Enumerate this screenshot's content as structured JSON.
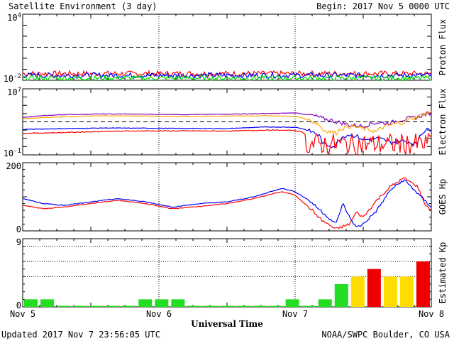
{
  "header": {
    "title": "Satellite Environment (3 day)",
    "begin": "Begin:  2017 Nov 5 0000 UTC"
  },
  "footer": {
    "updated": "Updated 2017 Nov  7 23:56:05 UTC",
    "credit": "NOAA/SWPC Boulder, CO USA"
  },
  "chart_data": [
    {
      "type": "line",
      "ylabel": "Proton Flux",
      "yscale": "log",
      "ylim": [
        0.01,
        10000
      ],
      "ytick_labels": [
        {
          "value": 10000,
          "base": "10",
          "exp": "4"
        },
        {
          "value": 0.01,
          "base": "10",
          "exp": "-2"
        }
      ],
      "threshold": 10,
      "series": [
        {
          "color": "#ff0000",
          "level": 0.04,
          "noise": 0.5,
          "kind": "noise"
        },
        {
          "color": "#0000ff",
          "level": 0.028,
          "noise": 0.5,
          "kind": "noise"
        },
        {
          "color": "#00dd00",
          "level": 0.016,
          "noise": 0.45,
          "kind": "noise"
        }
      ]
    },
    {
      "type": "line",
      "ylabel": "Electron Flux",
      "yscale": "log",
      "ylim": [
        0.1,
        10000000
      ],
      "ytick_labels": [
        {
          "value": 10000000,
          "base": "10",
          "exp": "7"
        },
        {
          "value": 0.1,
          "base": "10",
          "exp": "-1"
        }
      ],
      "threshold": 1000,
      "series": [
        {
          "color": "#8000c0",
          "points": [
            [
              0,
              3500
            ],
            [
              0.3,
              7500
            ],
            [
              0.6,
              9000
            ],
            [
              0.9,
              8500
            ],
            [
              1.2,
              7500
            ],
            [
              1.5,
              8500
            ],
            [
              1.8,
              10000
            ],
            [
              2.0,
              12000
            ],
            [
              2.1,
              7000
            ],
            [
              2.2,
              2500
            ],
            [
              2.3,
              1000
            ],
            [
              2.4,
              400
            ],
            [
              2.5,
              300
            ],
            [
              2.6,
              800
            ],
            [
              2.7,
              700
            ],
            [
              2.8,
              2000
            ],
            [
              2.9,
              3500
            ],
            [
              3.0,
              12000
            ]
          ]
        },
        {
          "color": "#ffa500",
          "points": [
            [
              0,
              2500
            ],
            [
              0.3,
              4000
            ],
            [
              0.6,
              5500
            ],
            [
              0.9,
              5000
            ],
            [
              1.2,
              4500
            ],
            [
              1.5,
              5000
            ],
            [
              1.8,
              5500
            ],
            [
              2.0,
              4500
            ],
            [
              2.1,
              1500
            ],
            [
              2.2,
              100
            ],
            [
              2.3,
              40
            ],
            [
              2.4,
              300
            ],
            [
              2.5,
              150
            ],
            [
              2.6,
              60
            ],
            [
              2.7,
              400
            ],
            [
              2.8,
              900
            ],
            [
              2.9,
              4000
            ],
            [
              3.0,
              15000
            ]
          ]
        },
        {
          "color": "#0000ff",
          "points": [
            [
              0,
              120
            ],
            [
              0.3,
              150
            ],
            [
              0.6,
              180
            ],
            [
              0.9,
              170
            ],
            [
              1.2,
              160
            ],
            [
              1.5,
              150
            ],
            [
              1.8,
              240
            ],
            [
              2.0,
              220
            ],
            [
              2.1,
              80
            ],
            [
              2.2,
              2
            ],
            [
              2.3,
              1
            ],
            [
              2.4,
              30
            ],
            [
              2.5,
              6
            ],
            [
              2.6,
              10
            ],
            [
              2.7,
              3
            ],
            [
              2.8,
              5
            ],
            [
              2.9,
              1.5
            ],
            [
              3.0,
              150
            ]
          ]
        },
        {
          "color": "#ff0000",
          "points": [
            [
              0,
              40
            ],
            [
              0.3,
              50
            ],
            [
              0.6,
              70
            ],
            [
              0.9,
              80
            ],
            [
              1.2,
              80
            ],
            [
              1.5,
              75
            ],
            [
              1.8,
              100
            ],
            [
              2.0,
              90
            ],
            [
              2.05,
              60
            ],
            [
              2.1,
              1
            ],
            [
              2.2,
              0.1
            ],
            [
              2.3,
              1
            ],
            [
              2.4,
              0.1
            ],
            [
              2.5,
              0.5
            ],
            [
              2.6,
              0.1
            ],
            [
              2.7,
              0.3
            ],
            [
              2.8,
              0.1
            ],
            [
              2.9,
              0.2
            ],
            [
              3.0,
              20
            ]
          ],
          "kind": "spiky"
        }
      ]
    },
    {
      "type": "line",
      "ylabel": "GOES Hp",
      "yscale": "linear",
      "ylim": [
        0,
        200
      ],
      "ytick_labels": [
        {
          "value": 200,
          "text": "200"
        },
        {
          "value": 0,
          "text": "0"
        }
      ],
      "series": [
        {
          "color": "#ff0000",
          "points": [
            [
              0,
              75
            ],
            [
              0.15,
              65
            ],
            [
              0.3,
              70
            ],
            [
              0.5,
              80
            ],
            [
              0.7,
              90
            ],
            [
              0.9,
              80
            ],
            [
              1.1,
              65
            ],
            [
              1.3,
              72
            ],
            [
              1.5,
              80
            ],
            [
              1.7,
              95
            ],
            [
              1.9,
              115
            ],
            [
              2.0,
              105
            ],
            [
              2.1,
              70
            ],
            [
              2.2,
              30
            ],
            [
              2.3,
              5
            ],
            [
              2.4,
              20
            ],
            [
              2.45,
              55
            ],
            [
              2.5,
              40
            ],
            [
              2.6,
              90
            ],
            [
              2.7,
              130
            ],
            [
              2.8,
              155
            ],
            [
              2.9,
              130
            ],
            [
              2.95,
              80
            ],
            [
              3.0,
              60
            ]
          ]
        },
        {
          "color": "#0000ff",
          "points": [
            [
              0,
              95
            ],
            [
              0.15,
              80
            ],
            [
              0.3,
              75
            ],
            [
              0.5,
              85
            ],
            [
              0.7,
              95
            ],
            [
              0.9,
              85
            ],
            [
              1.1,
              70
            ],
            [
              1.3,
              80
            ],
            [
              1.5,
              85
            ],
            [
              1.7,
              100
            ],
            [
              1.9,
              125
            ],
            [
              2.0,
              115
            ],
            [
              2.1,
              90
            ],
            [
              2.2,
              55
            ],
            [
              2.3,
              20
            ],
            [
              2.35,
              80
            ],
            [
              2.4,
              40
            ],
            [
              2.45,
              10
            ],
            [
              2.5,
              20
            ],
            [
              2.6,
              60
            ],
            [
              2.7,
              120
            ],
            [
              2.8,
              150
            ],
            [
              2.9,
              110
            ],
            [
              2.95,
              90
            ],
            [
              3.0,
              70
            ]
          ]
        }
      ]
    },
    {
      "type": "bar",
      "ylabel": "Estimated Kp",
      "yscale": "linear",
      "ylim": [
        0,
        9
      ],
      "ytick_labels": [
        {
          "value": 9,
          "text": "9"
        },
        {
          "value": 0,
          "text": "0"
        }
      ],
      "gridlines": [
        4,
        6,
        8
      ],
      "values": [
        1,
        1,
        0.15,
        0.15,
        0.15,
        0.15,
        0.15,
        1,
        1,
        1,
        0.15,
        0.15,
        0.15,
        0.15,
        0.15,
        0.15,
        1,
        0.15,
        1,
        3,
        4,
        5,
        4,
        4,
        6
      ],
      "colors": [
        "#22dd22",
        "#22dd22",
        "#22dd22",
        "#22dd22",
        "#22dd22",
        "#22dd22",
        "#22dd22",
        "#22dd22",
        "#22dd22",
        "#22dd22",
        "#22dd22",
        "#22dd22",
        "#22dd22",
        "#22dd22",
        "#22dd22",
        "#22dd22",
        "#22dd22",
        "#22dd22",
        "#22dd22",
        "#22dd22",
        "#ffdd00",
        "#ee0000",
        "#ffdd00",
        "#ffdd00",
        "#ee0000"
      ]
    }
  ],
  "xaxis": {
    "label": "Universal Time",
    "ticks": [
      "Nov 5",
      "Nov 6",
      "Nov 7",
      "Nov 8"
    ]
  }
}
